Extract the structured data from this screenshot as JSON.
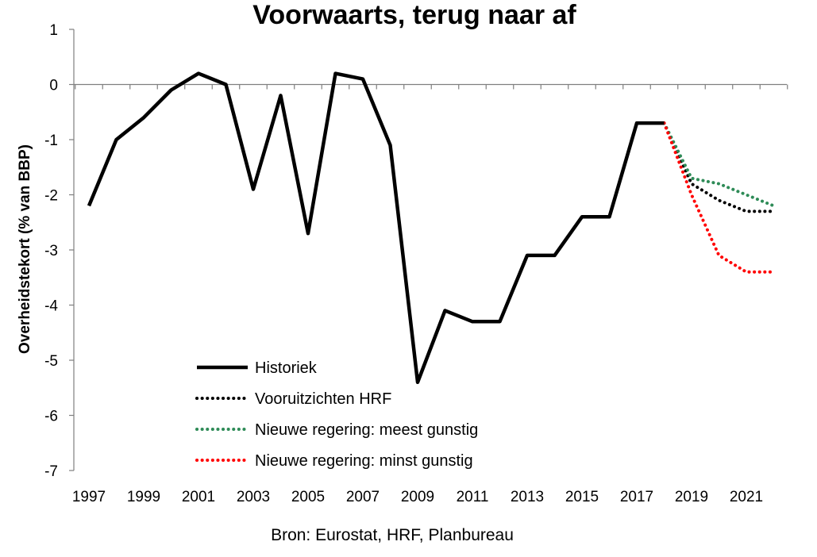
{
  "chart_data": {
    "type": "line",
    "title": "Voorwaarts, terug naar af",
    "ylabel": "Overheidstekort (% van BBP)",
    "xlabel": "",
    "source": "Bron: Eurostat, HRF, Planbureau",
    "ylim": [
      -7,
      1
    ],
    "yticks": [
      1,
      0,
      -1,
      -2,
      -3,
      -4,
      -5,
      -6,
      -7
    ],
    "xlim": [
      1997,
      2022
    ],
    "xticks": [
      1997,
      1999,
      2001,
      2003,
      2005,
      2007,
      2009,
      2011,
      2013,
      2015,
      2017,
      2019,
      2021
    ],
    "grid": false,
    "legend_position": "bottom-left",
    "series": [
      {
        "name": "Historiek",
        "color": "#000000",
        "style": "solid",
        "x": [
          1997,
          1998,
          1999,
          2000,
          2001,
          2002,
          2003,
          2004,
          2005,
          2006,
          2007,
          2008,
          2009,
          2010,
          2011,
          2012,
          2013,
          2014,
          2015,
          2016,
          2017,
          2018
        ],
        "y": [
          -2.2,
          -1.0,
          -0.6,
          -0.1,
          0.2,
          0.0,
          -1.9,
          -0.2,
          -2.7,
          0.2,
          0.1,
          -1.1,
          -5.4,
          -4.1,
          -4.3,
          -4.3,
          -3.1,
          -3.1,
          -2.4,
          -2.4,
          -0.7,
          -0.7
        ]
      },
      {
        "name": "Vooruitzichten HRF",
        "color": "#000000",
        "style": "dotted",
        "x": [
          2018,
          2019,
          2020,
          2021,
          2022
        ],
        "y": [
          -0.7,
          -1.8,
          -2.1,
          -2.3,
          -2.3
        ]
      },
      {
        "name": "Nieuwe regering: meest gunstig",
        "color": "#2e8b57",
        "style": "dotted",
        "x": [
          2018,
          2019,
          2020,
          2021,
          2022
        ],
        "y": [
          -0.7,
          -1.7,
          -1.8,
          -2.0,
          -2.2
        ]
      },
      {
        "name": "Nieuwe regering: minst gunstig",
        "color": "#ff0000",
        "style": "dotted",
        "x": [
          2018,
          2019,
          2020,
          2021,
          2022
        ],
        "y": [
          -0.7,
          -2.0,
          -3.1,
          -3.4,
          -3.4
        ]
      }
    ]
  }
}
